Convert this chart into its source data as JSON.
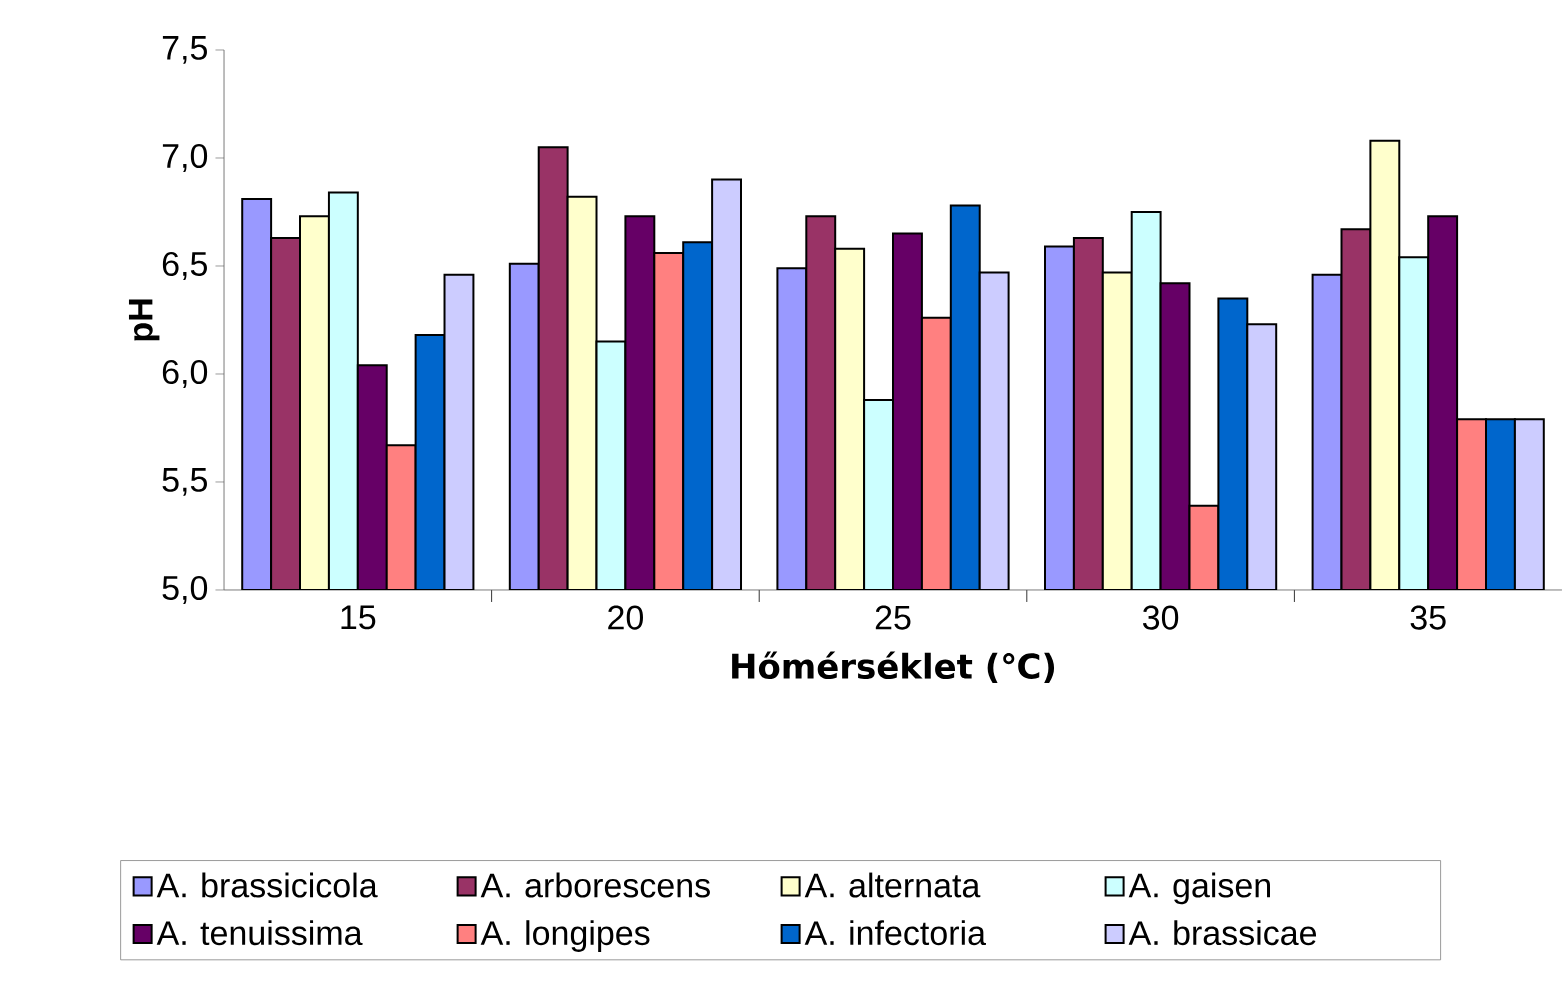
{
  "chart_data": {
    "type": "bar",
    "xlabel": "Hőmérséklet (℃)",
    "ylabel": "pH",
    "categories": [
      "15",
      "20",
      "25",
      "30",
      "35"
    ],
    "ylim": [
      5.0,
      7.5
    ],
    "yticks": [
      {
        "value": 5.0,
        "label": "5,0"
      },
      {
        "value": 5.5,
        "label": "5,5"
      },
      {
        "value": 6.0,
        "label": "6,0"
      },
      {
        "value": 6.5,
        "label": "6,5"
      },
      {
        "value": 7.0,
        "label": "7,0"
      },
      {
        "value": 7.5,
        "label": "7,5"
      }
    ],
    "legend": "bottom",
    "grid": false,
    "series": [
      {
        "name": "A. brassicicola",
        "color": "#9999ff",
        "values": [
          6.81,
          6.51,
          6.49,
          6.59,
          6.46
        ]
      },
      {
        "name": "A. arborescens",
        "color": "#993366",
        "values": [
          6.63,
          7.05,
          6.73,
          6.63,
          6.67
        ]
      },
      {
        "name": "A. alternata",
        "color": "#ffffcc",
        "values": [
          6.73,
          6.82,
          6.58,
          6.47,
          7.08
        ]
      },
      {
        "name": "A. gaisen",
        "color": "#ccffff",
        "values": [
          6.84,
          6.15,
          5.88,
          6.75,
          6.54
        ]
      },
      {
        "name": "A. tenuissima",
        "color": "#660066",
        "values": [
          6.04,
          6.73,
          6.65,
          6.42,
          6.73
        ]
      },
      {
        "name": "A. longipes",
        "color": "#ff8080",
        "values": [
          5.67,
          6.56,
          6.26,
          5.39,
          5.79
        ]
      },
      {
        "name": "A. infectoria",
        "color": "#0066cc",
        "values": [
          6.18,
          6.61,
          6.78,
          6.35,
          5.79
        ]
      },
      {
        "name": "A. brassicae",
        "color": "#ccccff",
        "values": [
          6.46,
          6.9,
          6.47,
          6.23,
          5.79
        ]
      }
    ]
  }
}
